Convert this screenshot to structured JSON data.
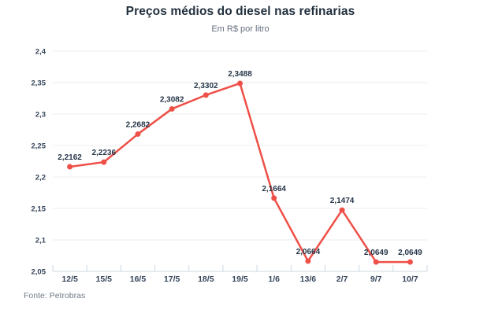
{
  "header": {
    "title": "Preços médios do diesel nas refinarias",
    "subtitle": "Em R$ por litro"
  },
  "footer": {
    "source": "Fonte: Petrobras"
  },
  "colors": {
    "line": "#ee5048",
    "marker": "#ee5048",
    "grid": "#ededed",
    "axis": "#cdd7de",
    "title_text": "#22303e",
    "axis_label_text": "#37475b",
    "point_label_text": "#263648"
  },
  "chart_data": {
    "type": "line",
    "title": "Preços médios do diesel nas refinarias",
    "subtitle": "Em R$ por litro",
    "source": "Fonte: Petrobras",
    "categories": [
      "12/5",
      "15/5",
      "16/5",
      "17/5",
      "18/5",
      "19/5",
      "1/6",
      "13/6",
      "2/7",
      "9/7",
      "10/7"
    ],
    "values": [
      2.2162,
      2.2236,
      2.2682,
      2.3082,
      2.3302,
      2.3488,
      2.1664,
      2.0664,
      2.1474,
      2.0649,
      2.0649
    ],
    "point_labels": [
      "2,2162",
      "2,2236",
      "2,2682",
      "2,3082",
      "2,3302",
      "2,3488",
      "2,1664",
      "2,0664",
      "2,1474",
      "2,0649",
      "2,0649"
    ],
    "ylim": [
      2.05,
      2.4
    ],
    "yticks": [
      2.05,
      2.1,
      2.15,
      2.2,
      2.25,
      2.3,
      2.35,
      2.4
    ],
    "ytick_labels": [
      "2,05",
      "2,1",
      "2,15",
      "2,2",
      "2,25",
      "2,3",
      "2,35",
      "2,4"
    ],
    "xlabel": "",
    "ylabel": "",
    "grid": true,
    "legend": "none"
  }
}
